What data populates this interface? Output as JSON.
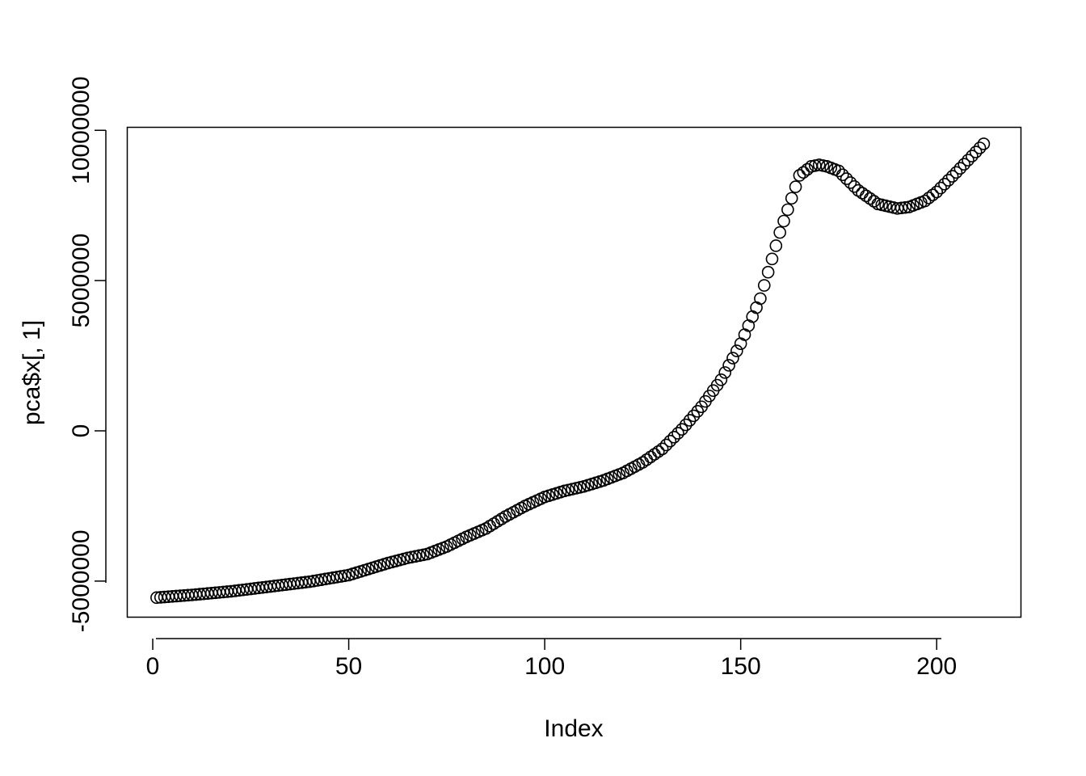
{
  "chart_data": {
    "type": "scatter",
    "title": "",
    "xlabel": "Index",
    "ylabel": "pca$x[, 1]",
    "xlim": [
      -6.5,
      221.5
    ],
    "ylim": [
      -6200000,
      10100000
    ],
    "x_ticks": [
      0,
      50,
      100,
      150,
      200
    ],
    "x_tick_labels": [
      "0",
      "50",
      "100",
      "150",
      "200"
    ],
    "y_ticks": [
      -5000000,
      0,
      5000000,
      10000000
    ],
    "y_tick_labels": [
      "-5000000",
      "0",
      "5000000",
      "10000000"
    ],
    "marker": "open-circle",
    "color": "#000000",
    "grid": false,
    "legend": "none",
    "n_points": 212,
    "curve_anchors": {
      "x": [
        1,
        10,
        20,
        30,
        40,
        50,
        55,
        60,
        65,
        70,
        75,
        80,
        85,
        90,
        95,
        100,
        105,
        110,
        115,
        120,
        125,
        130,
        135,
        140,
        145,
        150,
        155,
        160,
        165,
        168,
        170,
        172,
        175,
        180,
        185,
        190,
        193,
        197,
        200,
        205,
        212
      ],
      "y": [
        -5550000,
        -5460000,
        -5340000,
        -5180000,
        -5020000,
        -4800000,
        -4600000,
        -4400000,
        -4230000,
        -4100000,
        -3850000,
        -3530000,
        -3250000,
        -2850000,
        -2500000,
        -2200000,
        -2000000,
        -1850000,
        -1650000,
        -1400000,
        -1050000,
        -600000,
        50000,
        800000,
        1700000,
        2900000,
        4400000,
        6600000,
        8500000,
        8800000,
        8850000,
        8800000,
        8650000,
        8000000,
        7550000,
        7400000,
        7450000,
        7650000,
        7950000,
        8600000,
        9550000
      ]
    }
  }
}
